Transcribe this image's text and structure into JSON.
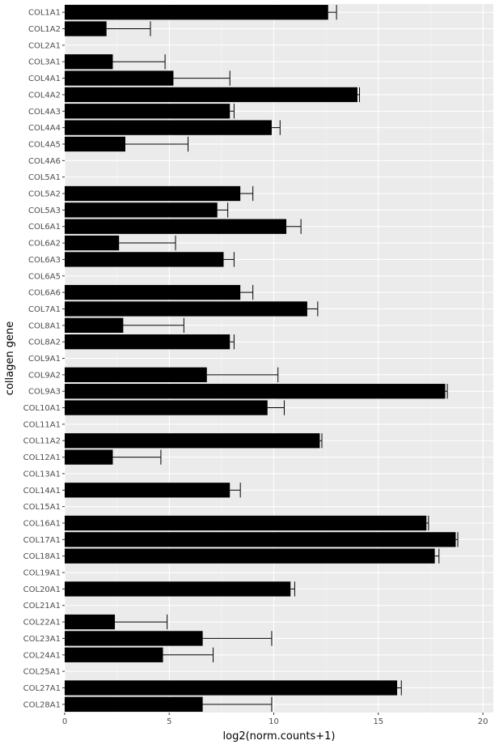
{
  "chart_data": {
    "type": "bar",
    "orientation": "horizontal",
    "title": "",
    "xlabel": "log2(norm.counts+1)",
    "ylabel": "collagen gene",
    "xlim": [
      0,
      20.5
    ],
    "xticks": [
      0,
      5,
      10,
      15,
      20
    ],
    "xtick_labels": [
      "0",
      "5",
      "10",
      "15",
      "20"
    ],
    "grid": true,
    "legend": "none",
    "categories": [
      "COL1A1",
      "COL1A2",
      "COL2A1",
      "COL3A1",
      "COL4A1",
      "COL4A2",
      "COL4A3",
      "COL4A4",
      "COL4A5",
      "COL4A6",
      "COL5A1",
      "COL5A2",
      "COL5A3",
      "COL6A1",
      "COL6A2",
      "COL6A3",
      "COL6A5",
      "COL6A6",
      "COL7A1",
      "COL8A1",
      "COL8A2",
      "COL9A1",
      "COL9A2",
      "COL9A3",
      "COL10A1",
      "COL11A1",
      "COL11A2",
      "COL12A1",
      "COL13A1",
      "COL14A1",
      "COL15A1",
      "COL16A1",
      "COL17A1",
      "COL18A1",
      "COL19A1",
      "COL20A1",
      "COL21A1",
      "COL22A1",
      "COL23A1",
      "COL24A1",
      "COL25A1",
      "COL27A1",
      "COL28A1"
    ],
    "values": [
      12.6,
      2.0,
      0,
      2.3,
      5.2,
      14.0,
      7.9,
      9.9,
      2.9,
      0,
      0,
      8.4,
      7.3,
      10.6,
      2.6,
      7.6,
      0,
      8.4,
      11.6,
      2.8,
      7.9,
      0,
      6.8,
      18.2,
      9.7,
      0,
      12.2,
      2.3,
      0,
      7.9,
      0,
      17.3,
      18.7,
      17.7,
      0,
      10.8,
      0,
      2.4,
      6.6,
      4.7,
      0,
      15.9,
      6.6
    ],
    "error_upper": [
      13.0,
      4.1,
      0,
      4.8,
      7.9,
      14.1,
      8.1,
      10.3,
      5.9,
      0,
      0,
      9.0,
      7.8,
      11.3,
      5.3,
      8.1,
      0,
      9.0,
      12.1,
      5.7,
      8.1,
      0,
      10.2,
      18.3,
      10.5,
      0,
      12.3,
      4.6,
      0,
      8.4,
      0,
      17.4,
      18.8,
      17.9,
      0,
      11.0,
      0,
      4.9,
      9.9,
      7.1,
      0,
      16.1,
      9.9
    ],
    "colors": {
      "bar": "#000000",
      "panel_background": "#ebebeb",
      "major_grid": "#ffffff",
      "minor_grid": "#f5f5f5",
      "tick_text": "#4d4d4d",
      "axis_title_text": "#000000"
    }
  }
}
